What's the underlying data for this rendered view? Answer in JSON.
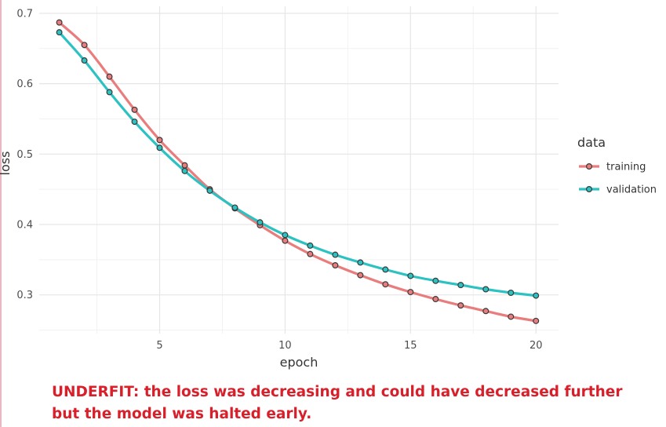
{
  "chart_data": {
    "type": "line",
    "xlabel": "epoch",
    "ylabel": "loss",
    "xlim": [
      0.2,
      20.9
    ],
    "ylim": [
      0.245,
      0.71
    ],
    "x_ticks": [
      5,
      10,
      15,
      20
    ],
    "y_ticks": [
      0.3,
      0.4,
      0.5,
      0.6,
      0.7
    ],
    "x_tick_labels": [
      "5",
      "10",
      "15",
      "20"
    ],
    "y_tick_labels": [
      "0.3",
      "0.4",
      "0.5",
      "0.6",
      "0.7"
    ],
    "grid": true,
    "legend": {
      "title": "data",
      "position": "right"
    },
    "x": [
      1,
      2,
      3,
      4,
      5,
      6,
      7,
      8,
      9,
      10,
      11,
      12,
      13,
      14,
      15,
      16,
      17,
      18,
      19,
      20
    ],
    "series": [
      {
        "name": "training",
        "color": "#e97d7d",
        "values": [
          0.687,
          0.655,
          0.61,
          0.563,
          0.52,
          0.484,
          0.45,
          0.423,
          0.399,
          0.377,
          0.358,
          0.342,
          0.328,
          0.315,
          0.304,
          0.294,
          0.285,
          0.277,
          0.269,
          0.263
        ]
      },
      {
        "name": "validation",
        "color": "#2dc2c2",
        "values": [
          0.673,
          0.633,
          0.588,
          0.546,
          0.509,
          0.476,
          0.448,
          0.424,
          0.403,
          0.385,
          0.37,
          0.357,
          0.346,
          0.336,
          0.327,
          0.32,
          0.314,
          0.308,
          0.303,
          0.299
        ]
      }
    ]
  },
  "caption": {
    "line1": "UNDERFIT: the loss was decreasing and could have decreased further",
    "line2": "but the model was halted early."
  }
}
